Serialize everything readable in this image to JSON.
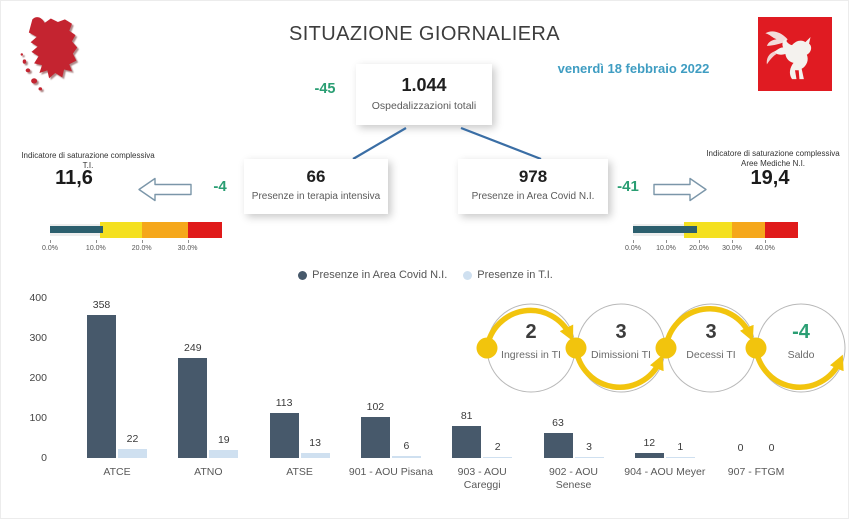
{
  "colors": {
    "accent_green": "#2a9e73",
    "date_blue": "#3f9dc2",
    "connector_blue": "#3a6ea5",
    "dark_series": "#47596b",
    "light_series": "#cfe0f0",
    "scale_teal": "#2c5f6e",
    "scale_yellow": "#f4e020",
    "scale_orange": "#f5a71b",
    "scale_red": "#e01a1a",
    "flow_yellow": "#f2c40d",
    "region_red": "#c42430"
  },
  "icons": {
    "region_map": "tuscany-map-icon",
    "crest": "tuscany-pegasus-crest-icon"
  },
  "header": {
    "title": "SITUAZIONE GIORNALIERA",
    "date": "venerdì 18 febbraio 2022"
  },
  "summary": {
    "total": {
      "value": "1.044",
      "label": "Ospedalizzazioni totali",
      "delta": "-45"
    },
    "icu": {
      "value": "66",
      "label": "Presenze in terapia intensiva",
      "delta": "-4"
    },
    "covid_area": {
      "value": "978",
      "label": "Presenze in Area Covid N.I.",
      "delta": "-41"
    }
  },
  "indicators": {
    "left": {
      "label": "Indicatore di saturazione complessiva T.I.",
      "value": "11,6",
      "scale": {
        "range_max": 37.5,
        "value": 11.6,
        "bar_color": "#2c5f6e",
        "segments": [
          {
            "from": 0,
            "to": 11,
            "color": "#ededed",
            "track": true
          },
          {
            "from": 11,
            "to": 20,
            "color": "#f4e020"
          },
          {
            "from": 20,
            "to": 30,
            "color": "#f5a71b"
          },
          {
            "from": 30,
            "to": 37.5,
            "color": "#e01a1a"
          }
        ],
        "ticks": [
          {
            "label": "0.0%",
            "at": 0
          },
          {
            "label": "10.0%",
            "at": 10
          },
          {
            "label": "20.0%",
            "at": 20
          },
          {
            "label": "30.0%",
            "at": 30
          }
        ]
      }
    },
    "right": {
      "label": "Indicatore di saturazione complessiva Aree Mediche N.I.",
      "value": "19,4",
      "scale": {
        "range_max": 50,
        "value": 19.4,
        "bar_color": "#2c5f6e",
        "segments": [
          {
            "from": 0,
            "to": 15.5,
            "color": "#ededed",
            "track": true
          },
          {
            "from": 15.5,
            "to": 30,
            "color": "#f4e020"
          },
          {
            "from": 30,
            "to": 40,
            "color": "#f5a71b"
          },
          {
            "from": 40,
            "to": 50,
            "color": "#e01a1a"
          }
        ],
        "ticks": [
          {
            "label": "0.0%",
            "at": 0
          },
          {
            "label": "10.0%",
            "at": 10
          },
          {
            "label": "20.0%",
            "at": 20
          },
          {
            "label": "30.0%",
            "at": 30
          },
          {
            "label": "40.0%",
            "at": 40
          }
        ]
      }
    }
  },
  "chart_data": {
    "type": "bar",
    "title": "",
    "xlabel": "",
    "ylabel": "",
    "categories": [
      "ATCE",
      "ATNO",
      "ATSE",
      "901 - AOU Pisana",
      "903 - AOU Careggi",
      "902 - AOU Senese",
      "904 - AOU Meyer",
      "907 - FTGM"
    ],
    "series": [
      {
        "name": "Presenze in Area Covid N.I.",
        "color": "#47596b",
        "values": [
          358,
          249,
          113,
          102,
          81,
          63,
          12,
          0
        ]
      },
      {
        "name": "Presenze in T.I.",
        "color": "#cfe0f0",
        "values": [
          22,
          19,
          13,
          6,
          2,
          3,
          1,
          0
        ]
      }
    ],
    "ylim": [
      0,
      400
    ],
    "yticks": [
      0,
      100,
      200,
      300,
      400
    ],
    "grid": false,
    "legend_position": "top-center",
    "value_labels": true
  },
  "flow": {
    "items": [
      {
        "value": "2",
        "label": "Ingressi in TI",
        "value_color": "#3c3c3c"
      },
      {
        "value": "3",
        "label": "Dimissioni TI",
        "value_color": "#3c3c3c"
      },
      {
        "value": "3",
        "label": "Decessi TI",
        "value_color": "#3c3c3c"
      },
      {
        "value": "-4",
        "label": "Saldo",
        "value_color": "#2a9e73"
      }
    ]
  }
}
